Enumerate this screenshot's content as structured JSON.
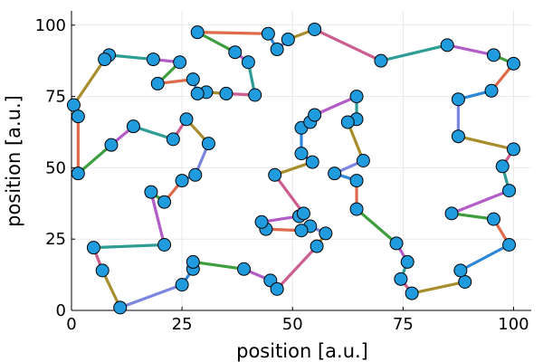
{
  "chart_data": {
    "type": "scatter",
    "title": "",
    "xlabel": "position [a.u.]",
    "ylabel": "position [a.u.]",
    "xlim": [
      0,
      104
    ],
    "ylim": [
      0,
      105
    ],
    "x_ticks": [
      0,
      25,
      50,
      75,
      100
    ],
    "y_ticks": [
      0,
      25,
      50,
      75,
      100
    ],
    "x_tick_labels": [
      "0",
      "25",
      "50",
      "75",
      "100"
    ],
    "y_tick_labels": [
      "0",
      "25",
      "50",
      "75",
      "100"
    ],
    "grid": true,
    "legend": "none",
    "marker_color": "#1f9bde",
    "segment_colors": [
      "#2e86d6",
      "#de6a4b",
      "#3d9e3d",
      "#b35bc6",
      "#2d9c95",
      "#cc5d8f",
      "#a88d2d",
      "#7b86e0"
    ],
    "route": [
      [
        0.5,
        72
      ],
      [
        1.5,
        68
      ],
      [
        1.5,
        48
      ],
      [
        9,
        58
      ],
      [
        14,
        64.5
      ],
      [
        23,
        60
      ],
      [
        26,
        67
      ],
      [
        31,
        58.5
      ],
      [
        28,
        47.5
      ],
      [
        25,
        45.5
      ],
      [
        21,
        38
      ],
      [
        18,
        41.5
      ],
      [
        21,
        23
      ],
      [
        5,
        22
      ],
      [
        7,
        14
      ],
      [
        11,
        1
      ],
      [
        25,
        9
      ],
      [
        27.5,
        14.5
      ],
      [
        27.5,
        17
      ],
      [
        39,
        14.5
      ],
      [
        45,
        10.5
      ],
      [
        46.5,
        7.5
      ],
      [
        55.5,
        22.5
      ],
      [
        57.5,
        27
      ],
      [
        54,
        29.5
      ],
      [
        52,
        28
      ],
      [
        44,
        28.5
      ],
      [
        43,
        31
      ],
      [
        51.5,
        33
      ],
      [
        52.5,
        34
      ],
      [
        46,
        47.5
      ],
      [
        54.5,
        52
      ],
      [
        52,
        55
      ],
      [
        52,
        64
      ],
      [
        54,
        66
      ],
      [
        55,
        68.5
      ],
      [
        64.5,
        75
      ],
      [
        64.5,
        67
      ],
      [
        62.5,
        66
      ],
      [
        66,
        52.5
      ],
      [
        59.5,
        48
      ],
      [
        64.5,
        45.5
      ],
      [
        64.5,
        35.5
      ],
      [
        73.5,
        23.5
      ],
      [
        76,
        17
      ],
      [
        74.5,
        11
      ],
      [
        77,
        6
      ],
      [
        89,
        10
      ],
      [
        88,
        14
      ],
      [
        99,
        23
      ],
      [
        95.5,
        32
      ],
      [
        86,
        34
      ],
      [
        99,
        42
      ],
      [
        97.5,
        50.5
      ],
      [
        100,
        56.5
      ],
      [
        87.5,
        61
      ],
      [
        87.5,
        74
      ],
      [
        95,
        77
      ],
      [
        100,
        86.5
      ],
      [
        95.5,
        89.5
      ],
      [
        85,
        93
      ],
      [
        70,
        87.5
      ],
      [
        55,
        98.5
      ],
      [
        49,
        95
      ],
      [
        46.5,
        91.5
      ],
      [
        44.5,
        97
      ],
      [
        28.5,
        97.5
      ],
      [
        37,
        90.5
      ],
      [
        40,
        87
      ],
      [
        41.5,
        75.5
      ],
      [
        35,
        76
      ],
      [
        30.5,
        76.5
      ],
      [
        28.5,
        76
      ],
      [
        27.5,
        81
      ],
      [
        19.5,
        79.5
      ],
      [
        24.5,
        87
      ],
      [
        18.5,
        88
      ],
      [
        8.5,
        89.5
      ],
      [
        7.5,
        88
      ],
      [
        0.5,
        72
      ]
    ]
  }
}
